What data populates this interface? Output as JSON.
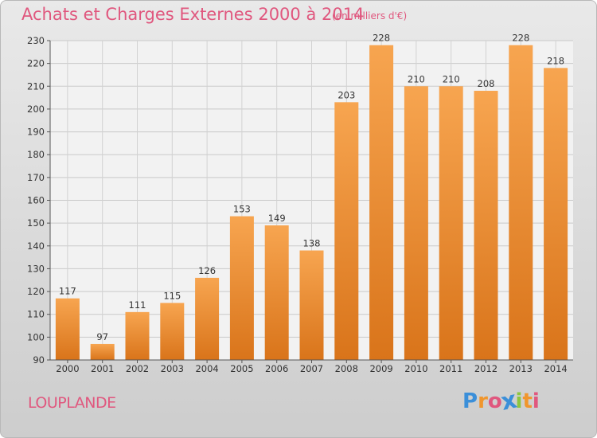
{
  "chart_data": {
    "type": "bar",
    "title": "Achats et Charges Externes 2000 à 2014",
    "subtitle": "(en milliers d'€)",
    "categories": [
      "2000",
      "2001",
      "2002",
      "2003",
      "2004",
      "2005",
      "2006",
      "2007",
      "2008",
      "2009",
      "2010",
      "2011",
      "2012",
      "2013",
      "2014"
    ],
    "values": [
      117,
      97,
      111,
      115,
      126,
      153,
      149,
      138,
      203,
      228,
      210,
      210,
      208,
      228,
      218
    ],
    "ylim": [
      90,
      230
    ],
    "yticks": [
      90,
      100,
      110,
      120,
      130,
      140,
      150,
      160,
      170,
      180,
      190,
      200,
      210,
      220,
      230
    ],
    "xlabel": "",
    "ylabel": "",
    "grid": true,
    "bar_color": "#f0963c"
  },
  "footer": {
    "place": "LOUPLANDE",
    "logo_letters": [
      "P",
      "r",
      "o",
      "x",
      "i",
      "t",
      "i"
    ],
    "logo_colors": [
      "#3b8fd9",
      "#f0962d",
      "#e0577e",
      "#3b8fd9",
      "#8cc63f",
      "#f0962d",
      "#e0577e"
    ]
  },
  "colors": {
    "title": "#e0577e",
    "background": "#dcdcdc"
  }
}
